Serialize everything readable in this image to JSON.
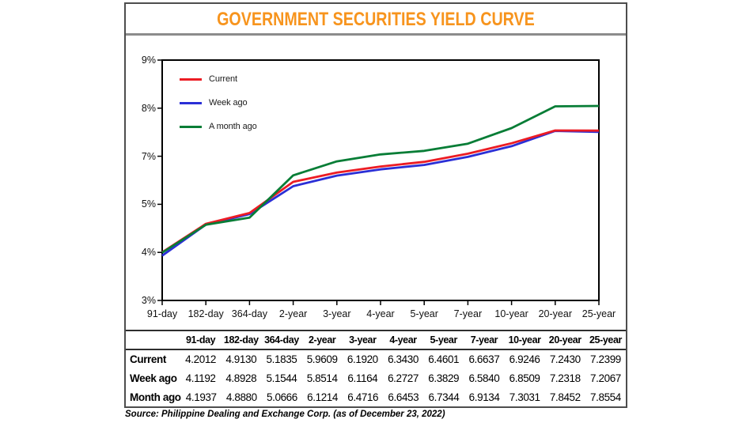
{
  "title": "GOVERNMENT SECURITIES YIELD CURVE",
  "source": "Source: Philippine Dealing and Exchange Corp. (as of December 23, 2022)",
  "colors": {
    "title": "#F7941D",
    "current": "#EC1C24",
    "week_ago": "#2B2FD6",
    "month_ago": "#077D36",
    "axis": "#000000",
    "divider": "#8C8C8C"
  },
  "chart_data": {
    "type": "line",
    "categories": [
      "91-day",
      "182-day",
      "364-day",
      "2-year",
      "3-year",
      "4-year",
      "5-year",
      "7-year",
      "10-year",
      "20-year",
      "25-year"
    ],
    "series": [
      {
        "name": "Current",
        "key": "current",
        "color": "#EC1C24",
        "values": [
          4.2012,
          4.913,
          5.1835,
          5.9609,
          6.192,
          6.343,
          6.4601,
          6.6637,
          6.9246,
          7.243,
          7.2399
        ]
      },
      {
        "name": "Week ago",
        "key": "week_ago",
        "color": "#2B2FD6",
        "values": [
          4.1192,
          4.8928,
          5.1544,
          5.8514,
          6.1164,
          6.2727,
          6.3829,
          6.584,
          6.8509,
          7.2318,
          7.2067
        ]
      },
      {
        "name": "A month ago",
        "key": "month_ago",
        "color": "#077D36",
        "values": [
          4.1937,
          4.888,
          5.0666,
          6.1214,
          6.4716,
          6.6453,
          6.7344,
          6.9134,
          7.3031,
          7.8452,
          7.8554
        ]
      }
    ],
    "y_tick_labels": [
      "9%",
      "8%",
      "7%",
      "5%",
      "4%",
      "3%"
    ],
    "y_axis_range": [
      3,
      9
    ],
    "grid": false,
    "legend_position": "top-left",
    "title": "GOVERNMENT SECURITIES YIELD CURVE",
    "xlabel": "",
    "ylabel": ""
  },
  "table": {
    "columns": [
      "91-day",
      "182-day",
      "364-day",
      "2-year",
      "3-year",
      "4-year",
      "5-year",
      "7-year",
      "10-year",
      "20-year",
      "25-year"
    ],
    "rows": [
      {
        "label": "Current",
        "values": [
          "4.2012",
          "4.9130",
          "5.1835",
          "5.9609",
          "6.1920",
          "6.3430",
          "6.4601",
          "6.6637",
          "6.9246",
          "7.2430",
          "7.2399"
        ]
      },
      {
        "label": "Week ago",
        "values": [
          "4.1192",
          "4.8928",
          "5.1544",
          "5.8514",
          "6.1164",
          "6.2727",
          "6.3829",
          "6.5840",
          "6.8509",
          "7.2318",
          "7.2067"
        ]
      },
      {
        "label": "Month ago",
        "values": [
          "4.1937",
          "4.8880",
          "5.0666",
          "6.1214",
          "6.4716",
          "6.6453",
          "6.7344",
          "6.9134",
          "7.3031",
          "7.8452",
          "7.8554"
        ]
      }
    ]
  }
}
